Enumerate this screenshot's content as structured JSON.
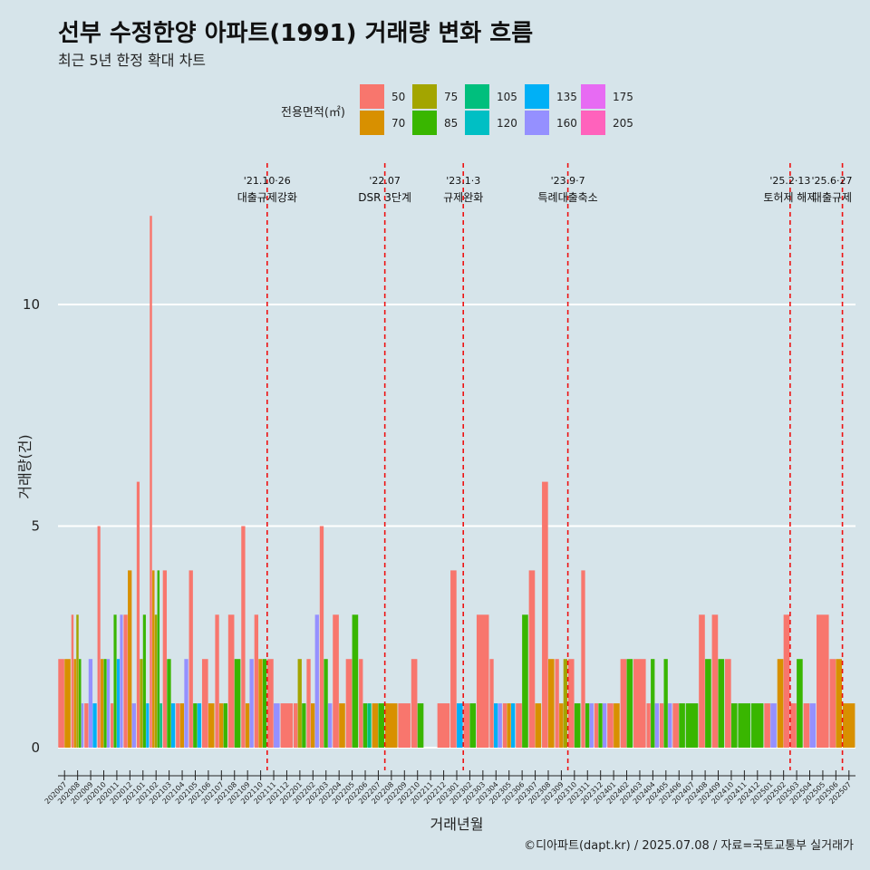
{
  "header": {
    "title": "선부 수정한양 아파트(1991) 거래량 변화 흐름",
    "subtitle": "최근 5년 한정 확대 차트"
  },
  "footer": {
    "caption": "©디아파트(dapt.kr) / 2025.07.08 / 자료=국토교통부 실거래가"
  },
  "chart_data": {
    "type": "bar",
    "title": "선부 수정한양 아파트(1991) 거래량 변화 흐름",
    "subtitle": "최근 5년 한정 확대 차트",
    "xlabel": "거래년월",
    "ylabel": "거래량(건)",
    "ylim": [
      -0.6,
      13
    ],
    "y_ticks": [
      0,
      5,
      10
    ],
    "grid": "horizontal",
    "legend": {
      "title": "전용면적(㎡)",
      "placement": "top",
      "entries": [
        {
          "name": "50",
          "color": "#F8766D"
        },
        {
          "name": "70",
          "color": "#D89000"
        },
        {
          "name": "75",
          "color": "#A3A500"
        },
        {
          "name": "85",
          "color": "#39B600"
        },
        {
          "name": "105",
          "color": "#00BF7D"
        },
        {
          "name": "120",
          "color": "#00BFC4"
        },
        {
          "name": "135",
          "color": "#00B0F6"
        },
        {
          "name": "160",
          "color": "#9590FF"
        },
        {
          "name": "175",
          "color": "#E76BF3"
        },
        {
          "name": "205",
          "color": "#FF62BC"
        }
      ]
    },
    "categories": [
      "202007",
      "202008",
      "202009",
      "202010",
      "202011",
      "202012",
      "202101",
      "202102",
      "202103",
      "202104",
      "202105",
      "202106",
      "202107",
      "202108",
      "202109",
      "202110",
      "202111",
      "202112",
      "202201",
      "202202",
      "202203",
      "202204",
      "202205",
      "202206",
      "202207",
      "202208",
      "202209",
      "202210",
      "202211",
      "202212",
      "202301",
      "202302",
      "202303",
      "202304",
      "202305",
      "202306",
      "202307",
      "202308",
      "202309",
      "202310",
      "202311",
      "202312",
      "202401",
      "202402",
      "202403",
      "202404",
      "202405",
      "202406",
      "202407",
      "202408",
      "202409",
      "202410",
      "202411",
      "202412",
      "202501",
      "202502",
      "202503",
      "202504",
      "202505",
      "202506",
      "202507"
    ],
    "events": [
      {
        "date": "'21.10·26",
        "label": "대출규제강화",
        "category": "202110"
      },
      {
        "date": "'22.07",
        "label": "DSR 3단계",
        "category": "202207"
      },
      {
        "date": "'23.1·3",
        "label": "규제완화",
        "category": "202301"
      },
      {
        "date": "'23.9·7",
        "label": "특례대출축소",
        "category": "202309"
      },
      {
        "date": "'25.2·13",
        "label": "토허제 해제",
        "category": "202502"
      },
      {
        "date": "'25.6·27",
        "label": "대출규제",
        "category": "202506"
      }
    ],
    "months": [
      [
        [
          "50",
          2
        ],
        [
          "70",
          2
        ]
      ],
      [
        [
          "50",
          3
        ],
        [
          "70",
          2
        ],
        [
          "75",
          3
        ],
        [
          "85",
          2
        ],
        [
          "160",
          1
        ]
      ],
      [
        [
          "50",
          1
        ],
        [
          "160",
          2
        ],
        [
          "135",
          1
        ]
      ],
      [
        [
          "50",
          5
        ],
        [
          "70",
          2
        ],
        [
          "85",
          2
        ],
        [
          "160",
          2
        ]
      ],
      [
        [
          "50",
          1
        ],
        [
          "85",
          3
        ],
        [
          "135",
          2
        ],
        [
          "160",
          3
        ]
      ],
      [
        [
          "50",
          3
        ],
        [
          "70",
          4
        ],
        [
          "160",
          1
        ]
      ],
      [
        [
          "50",
          6
        ],
        [
          "75",
          2
        ],
        [
          "85",
          3
        ],
        [
          "135",
          1
        ]
      ],
      [
        [
          "50",
          12
        ],
        [
          "70",
          4
        ],
        [
          "75",
          3
        ],
        [
          "85",
          4
        ],
        [
          "105",
          1
        ]
      ],
      [
        [
          "50",
          4
        ],
        [
          "85",
          2
        ],
        [
          "135",
          1
        ]
      ],
      [
        [
          "50",
          1
        ],
        [
          "70",
          1
        ],
        [
          "160",
          2
        ]
      ],
      [
        [
          "50",
          4
        ],
        [
          "85",
          1
        ],
        [
          "135",
          1
        ]
      ],
      [
        [
          "50",
          2
        ],
        [
          "70",
          1
        ]
      ],
      [
        [
          "50",
          3
        ],
        [
          "70",
          1
        ],
        [
          "85",
          1
        ]
      ],
      [
        [
          "50",
          3
        ],
        [
          "85",
          2
        ]
      ],
      [
        [
          "50",
          5
        ],
        [
          "70",
          1
        ],
        [
          "160",
          2
        ]
      ],
      [
        [
          "50",
          3
        ],
        [
          "70",
          2
        ],
        [
          "85",
          2
        ]
      ],
      [
        [
          "50",
          2
        ],
        [
          "160",
          1
        ]
      ],
      [
        [
          "50",
          1
        ]
      ],
      [
        [
          "50",
          1
        ],
        [
          "75",
          2
        ],
        [
          "85",
          1
        ]
      ],
      [
        [
          "50",
          2
        ],
        [
          "70",
          1
        ],
        [
          "160",
          3
        ]
      ],
      [
        [
          "50",
          5
        ],
        [
          "85",
          2
        ],
        [
          "160",
          1
        ]
      ],
      [
        [
          "50",
          3
        ],
        [
          "70",
          1
        ]
      ],
      [
        [
          "50",
          2
        ],
        [
          "85",
          3
        ]
      ],
      [
        [
          "50",
          2
        ],
        [
          "85",
          1
        ],
        [
          "105",
          1
        ]
      ],
      [
        [
          "70",
          1
        ],
        [
          "85",
          1
        ]
      ],
      [
        [
          "70",
          1
        ]
      ],
      [
        [
          "50",
          1
        ]
      ],
      [
        [
          "50",
          2
        ],
        [
          "85",
          1
        ]
      ],
      [],
      [
        [
          "50",
          1
        ]
      ],
      [
        [
          "50",
          4
        ],
        [
          "135",
          1
        ]
      ],
      [
        [
          "50",
          1
        ],
        [
          "85",
          1
        ]
      ],
      [
        [
          "50",
          3
        ]
      ],
      [
        [
          "50",
          2
        ],
        [
          "135",
          1
        ],
        [
          "160",
          1
        ]
      ],
      [
        [
          "50",
          1
        ],
        [
          "70",
          1
        ],
        [
          "135",
          1
        ]
      ],
      [
        [
          "50",
          1
        ],
        [
          "85",
          3
        ]
      ],
      [
        [
          "50",
          4
        ],
        [
          "70",
          1
        ]
      ],
      [
        [
          "50",
          6
        ],
        [
          "70",
          2
        ]
      ],
      [
        [
          "50",
          2
        ],
        [
          "70",
          1
        ],
        [
          "75",
          2
        ]
      ],
      [
        [
          "50",
          2
        ],
        [
          "85",
          1
        ]
      ],
      [
        [
          "50",
          4
        ],
        [
          "85",
          1
        ],
        [
          "160",
          1
        ]
      ],
      [
        [
          "50",
          1
        ],
        [
          "85",
          1
        ],
        [
          "160",
          1
        ]
      ],
      [
        [
          "50",
          1
        ],
        [
          "70",
          1
        ]
      ],
      [
        [
          "50",
          2
        ],
        [
          "85",
          2
        ]
      ],
      [
        [
          "50",
          2
        ]
      ],
      [
        [
          "50",
          1
        ],
        [
          "85",
          2
        ],
        [
          "160",
          1
        ]
      ],
      [
        [
          "50",
          1
        ],
        [
          "85",
          2
        ],
        [
          "160",
          1
        ]
      ],
      [
        [
          "50",
          1
        ],
        [
          "85",
          1
        ]
      ],
      [
        [
          "85",
          1
        ]
      ],
      [
        [
          "50",
          3
        ],
        [
          "85",
          2
        ]
      ],
      [
        [
          "50",
          3
        ],
        [
          "85",
          2
        ]
      ],
      [
        [
          "50",
          2
        ],
        [
          "85",
          1
        ]
      ],
      [
        [
          "85",
          1
        ]
      ],
      [
        [
          "85",
          1
        ]
      ],
      [
        [
          "50",
          1
        ],
        [
          "160",
          1
        ]
      ],
      [
        [
          "70",
          2
        ],
        [
          "50",
          3
        ]
      ],
      [
        [
          "50",
          1
        ],
        [
          "85",
          2
        ]
      ],
      [
        [
          "50",
          1
        ],
        [
          "160",
          1
        ]
      ],
      [
        [
          "50",
          3
        ]
      ],
      [
        [
          "50",
          2
        ],
        [
          "70",
          2
        ]
      ],
      [
        [
          "70",
          1
        ]
      ]
    ]
  }
}
